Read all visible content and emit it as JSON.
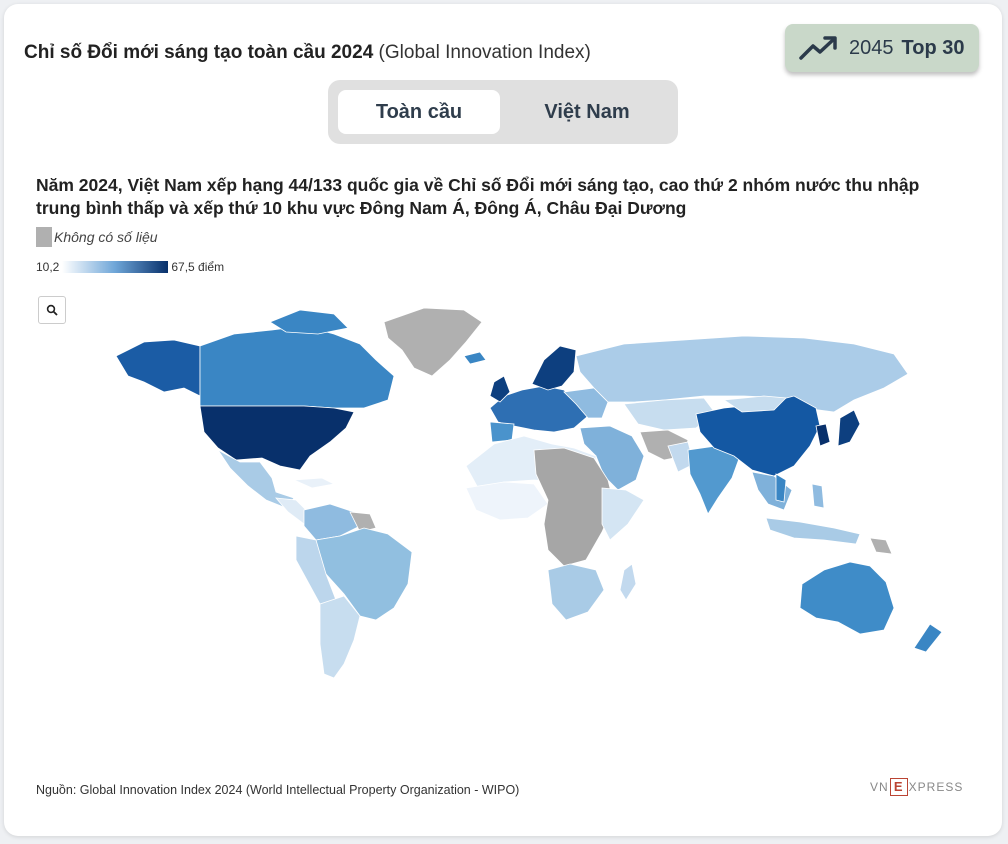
{
  "title": {
    "main": "Chỉ số Đổi mới sáng tạo toàn cầu 2024",
    "sub": "(Global Innovation Index)"
  },
  "badge": {
    "year": "2045",
    "label": "Top 30"
  },
  "tabs": [
    {
      "label": "Toàn cầu",
      "active": true
    },
    {
      "label": "Việt Nam",
      "active": false
    }
  ],
  "headline": "Năm 2024, Việt Nam xếp hạng 44/133 quốc gia về Chỉ số Đổi mới sáng tạo, cao thứ 2 nhóm nước thu nhập trung bình thấp và xếp thứ 10 khu vực Đông Nam Á, Đông Á, Châu Đại Dương",
  "legend": {
    "nodata": "Không có số liệu",
    "min": "10,2",
    "max": "67,5 điểm"
  },
  "colors": {
    "scale_low": "#ffffff",
    "scale_high": "#08306b",
    "nodata": "#b0b0b0"
  },
  "source": "Nguồn: Global Innovation Index 2024 (World Intellectual Property Organization - WIPO)",
  "logo": {
    "left": "VN",
    "mark": "E",
    "right": "XPRESS"
  },
  "icons": {
    "badge": "trend-up-icon",
    "zoom": "search-icon"
  }
}
